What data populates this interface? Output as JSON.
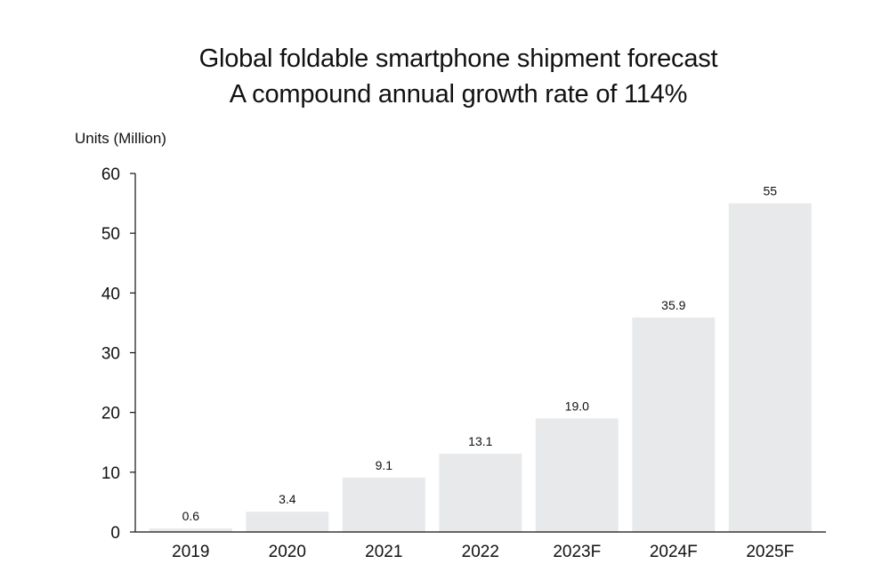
{
  "chart_data": {
    "type": "bar",
    "title": "Global foldable smartphone shipment forecast",
    "subtitle": "A compound annual growth rate of 114%",
    "ylabel": "Units (Million)",
    "xlabel": "",
    "categories": [
      "2019",
      "2020",
      "2021",
      "2022",
      "2023F",
      "2024F",
      "2025F"
    ],
    "values": [
      0.6,
      3.4,
      9.1,
      13.1,
      19.0,
      35.9,
      55
    ],
    "value_labels": [
      "0.6",
      "3.4",
      "9.1",
      "13.1",
      "19.0",
      "35.9",
      "55"
    ],
    "ylim": [
      0,
      60
    ],
    "yticks": [
      0,
      10,
      20,
      30,
      40,
      50,
      60
    ],
    "bar_color": "#e8e9eb",
    "axis_color": "#111111",
    "grid": false,
    "legend": "none"
  }
}
